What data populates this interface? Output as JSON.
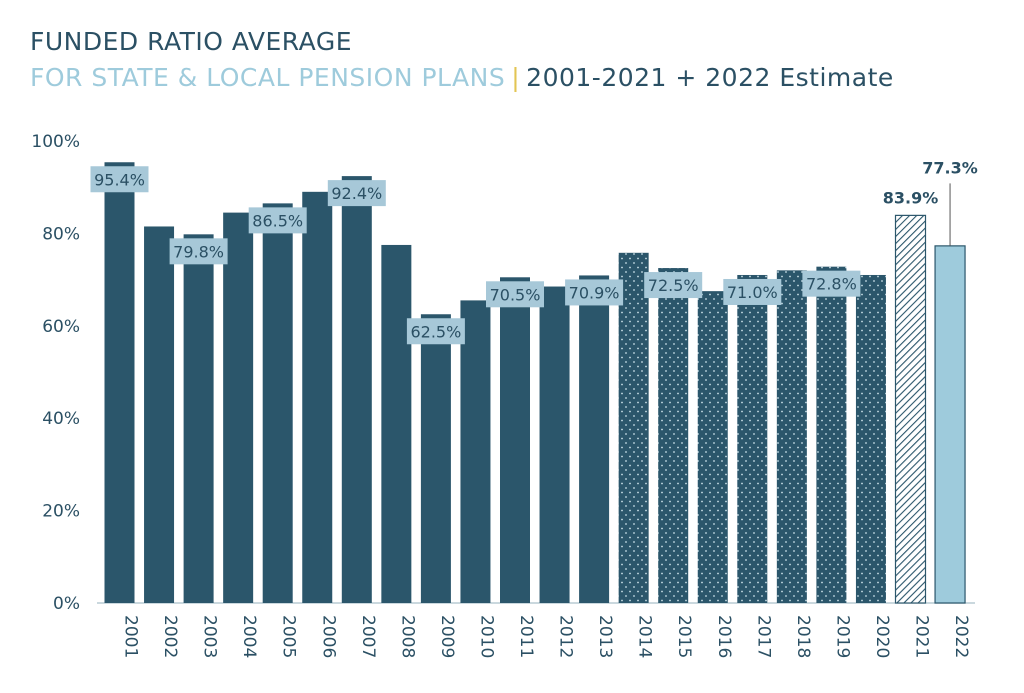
{
  "header": {
    "title": "FUNDED RATIO AVERAGE",
    "subtitle_left": "FOR STATE & LOCAL PENSION PLANS",
    "separator": "|",
    "subtitle_right": "2001-2021 + 2022 Estimate"
  },
  "colors": {
    "bar": "#2b566b",
    "estimate_bar": "#9ecbdc",
    "label_box": "#a7c8d8",
    "separator": "#e3c553",
    "text": "#2b5064"
  },
  "chart_data": {
    "type": "bar",
    "categories": [
      "2001",
      "2002",
      "2003",
      "2004",
      "2005",
      "2006",
      "2007",
      "2008",
      "2009",
      "2010",
      "2011",
      "2012",
      "2013",
      "2014",
      "2015",
      "2016",
      "2017",
      "2018",
      "2019",
      "2020",
      "2021",
      "2022"
    ],
    "values": [
      95.4,
      81.5,
      79.8,
      84.5,
      86.5,
      89.0,
      92.4,
      77.5,
      62.5,
      65.5,
      70.5,
      68.5,
      70.9,
      75.8,
      72.5,
      67.5,
      71.0,
      72.0,
      72.8,
      71.0,
      83.9,
      77.3
    ],
    "labels": [
      "95.4%",
      "",
      "79.8%",
      "",
      "86.5%",
      "",
      "92.4%",
      "",
      "62.5%",
      "",
      "70.5%",
      "",
      "70.9%",
      "",
      "72.5%",
      "",
      "71.0%",
      "",
      "72.8%",
      "",
      "83.9%",
      "77.3%"
    ],
    "styles": [
      "solid",
      "solid",
      "solid",
      "solid",
      "solid",
      "solid",
      "solid",
      "solid",
      "solid",
      "solid",
      "solid",
      "solid",
      "solid",
      "dotted",
      "dotted",
      "dotted",
      "dotted",
      "dotted",
      "dotted",
      "dotted",
      "hatched",
      "estimate"
    ],
    "ylim": [
      0,
      100
    ],
    "yticks": [
      0,
      20,
      40,
      60,
      80,
      100
    ],
    "ytick_labels": [
      "0%",
      "20%",
      "40%",
      "60%",
      "80%",
      "100%"
    ],
    "grid": false,
    "legend": "none"
  }
}
